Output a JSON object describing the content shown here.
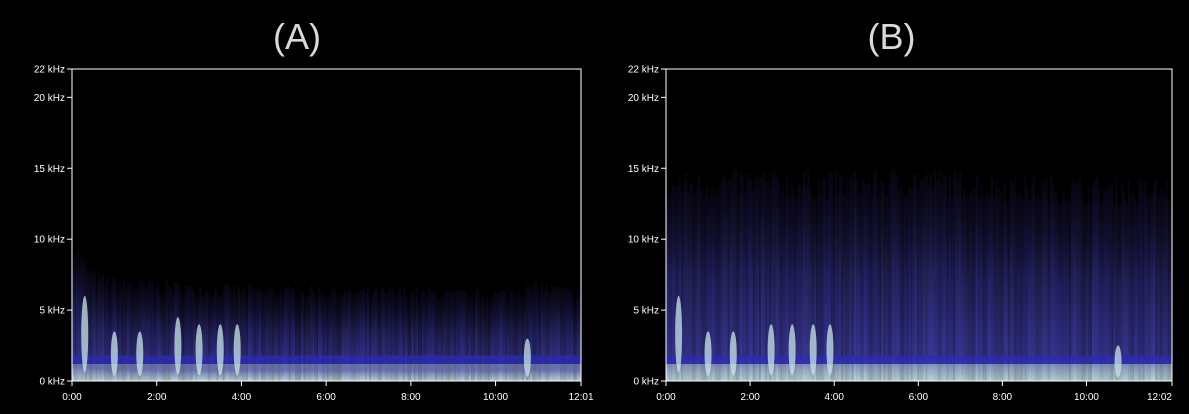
{
  "chart_data": [
    {
      "type": "heatmap",
      "title": "(A)",
      "xlabel": "",
      "ylabel": "",
      "x_unit": "min:sec",
      "xlim": [
        0,
        12.0167
      ],
      "ylim": [
        0,
        22
      ],
      "x_ticks": [
        0,
        2,
        4,
        6,
        8,
        10,
        12.0167
      ],
      "x_tick_labels": [
        "0:00",
        "2:00",
        "4:00",
        "6:00",
        "8:00",
        "10:00",
        "12:01"
      ],
      "y_ticks": [
        0,
        5,
        10,
        15,
        20,
        22
      ],
      "y_tick_labels": [
        "0 kHz",
        "5 kHz",
        "10 kHz",
        "15 kHz",
        "20 kHz",
        "22 kHz"
      ],
      "energy_ceiling_khz": [
        {
          "t": 0.0,
          "khz": 9.5
        },
        {
          "t": 0.5,
          "khz": 7.5
        },
        {
          "t": 1.0,
          "khz": 7.0
        },
        {
          "t": 2.0,
          "khz": 6.8
        },
        {
          "t": 3.0,
          "khz": 6.6
        },
        {
          "t": 4.0,
          "khz": 6.5
        },
        {
          "t": 6.0,
          "khz": 6.4
        },
        {
          "t": 8.0,
          "khz": 6.3
        },
        {
          "t": 10.0,
          "khz": 6.2
        },
        {
          "t": 11.0,
          "khz": 6.8
        },
        {
          "t": 12.0,
          "khz": 6.2
        }
      ],
      "bright_bursts": [
        {
          "t": 0.3,
          "khz_top": 6.0
        },
        {
          "t": 1.0,
          "khz_top": 3.5
        },
        {
          "t": 1.6,
          "khz_top": 3.5
        },
        {
          "t": 2.5,
          "khz_top": 4.5
        },
        {
          "t": 3.0,
          "khz_top": 4.0
        },
        {
          "t": 3.5,
          "khz_top": 4.0
        },
        {
          "t": 3.9,
          "khz_top": 4.0
        },
        {
          "t": 10.75,
          "khz_top": 3.0
        }
      ],
      "colors": {
        "low": "#1a1440",
        "mid": "#3c3aa0",
        "high": "#c8e6e6",
        "axis": "#ffffff"
      }
    },
    {
      "type": "heatmap",
      "title": "(B)",
      "xlabel": "",
      "ylabel": "",
      "x_unit": "min:sec",
      "xlim": [
        0,
        12.0333
      ],
      "ylim": [
        0,
        22
      ],
      "x_ticks": [
        0,
        2,
        4,
        6,
        8,
        10,
        12.0333
      ],
      "x_tick_labels": [
        "0:00",
        "2:00",
        "4:00",
        "6:00",
        "8:00",
        "10:00",
        "12:02"
      ],
      "y_ticks": [
        0,
        5,
        10,
        15,
        20,
        22
      ],
      "y_tick_labels": [
        "0 kHz",
        "5 kHz",
        "10 kHz",
        "15 kHz",
        "20 kHz",
        "22 kHz"
      ],
      "energy_ceiling_khz": [
        {
          "t": 0.0,
          "khz": 14.0
        },
        {
          "t": 1.0,
          "khz": 14.3
        },
        {
          "t": 2.0,
          "khz": 14.3
        },
        {
          "t": 4.0,
          "khz": 14.2
        },
        {
          "t": 6.0,
          "khz": 14.5
        },
        {
          "t": 8.0,
          "khz": 14.0
        },
        {
          "t": 10.0,
          "khz": 13.8
        },
        {
          "t": 12.0,
          "khz": 13.8
        }
      ],
      "bright_bursts": [
        {
          "t": 0.3,
          "khz_top": 6.0
        },
        {
          "t": 1.0,
          "khz_top": 3.5
        },
        {
          "t": 1.6,
          "khz_top": 3.5
        },
        {
          "t": 2.5,
          "khz_top": 4.0
        },
        {
          "t": 3.0,
          "khz_top": 4.0
        },
        {
          "t": 3.5,
          "khz_top": 4.0
        },
        {
          "t": 3.9,
          "khz_top": 4.0
        },
        {
          "t": 10.75,
          "khz_top": 2.5
        }
      ],
      "colors": {
        "low": "#1a1440",
        "mid": "#3c3aa0",
        "high": "#c8e6e6",
        "axis": "#ffffff"
      }
    }
  ]
}
